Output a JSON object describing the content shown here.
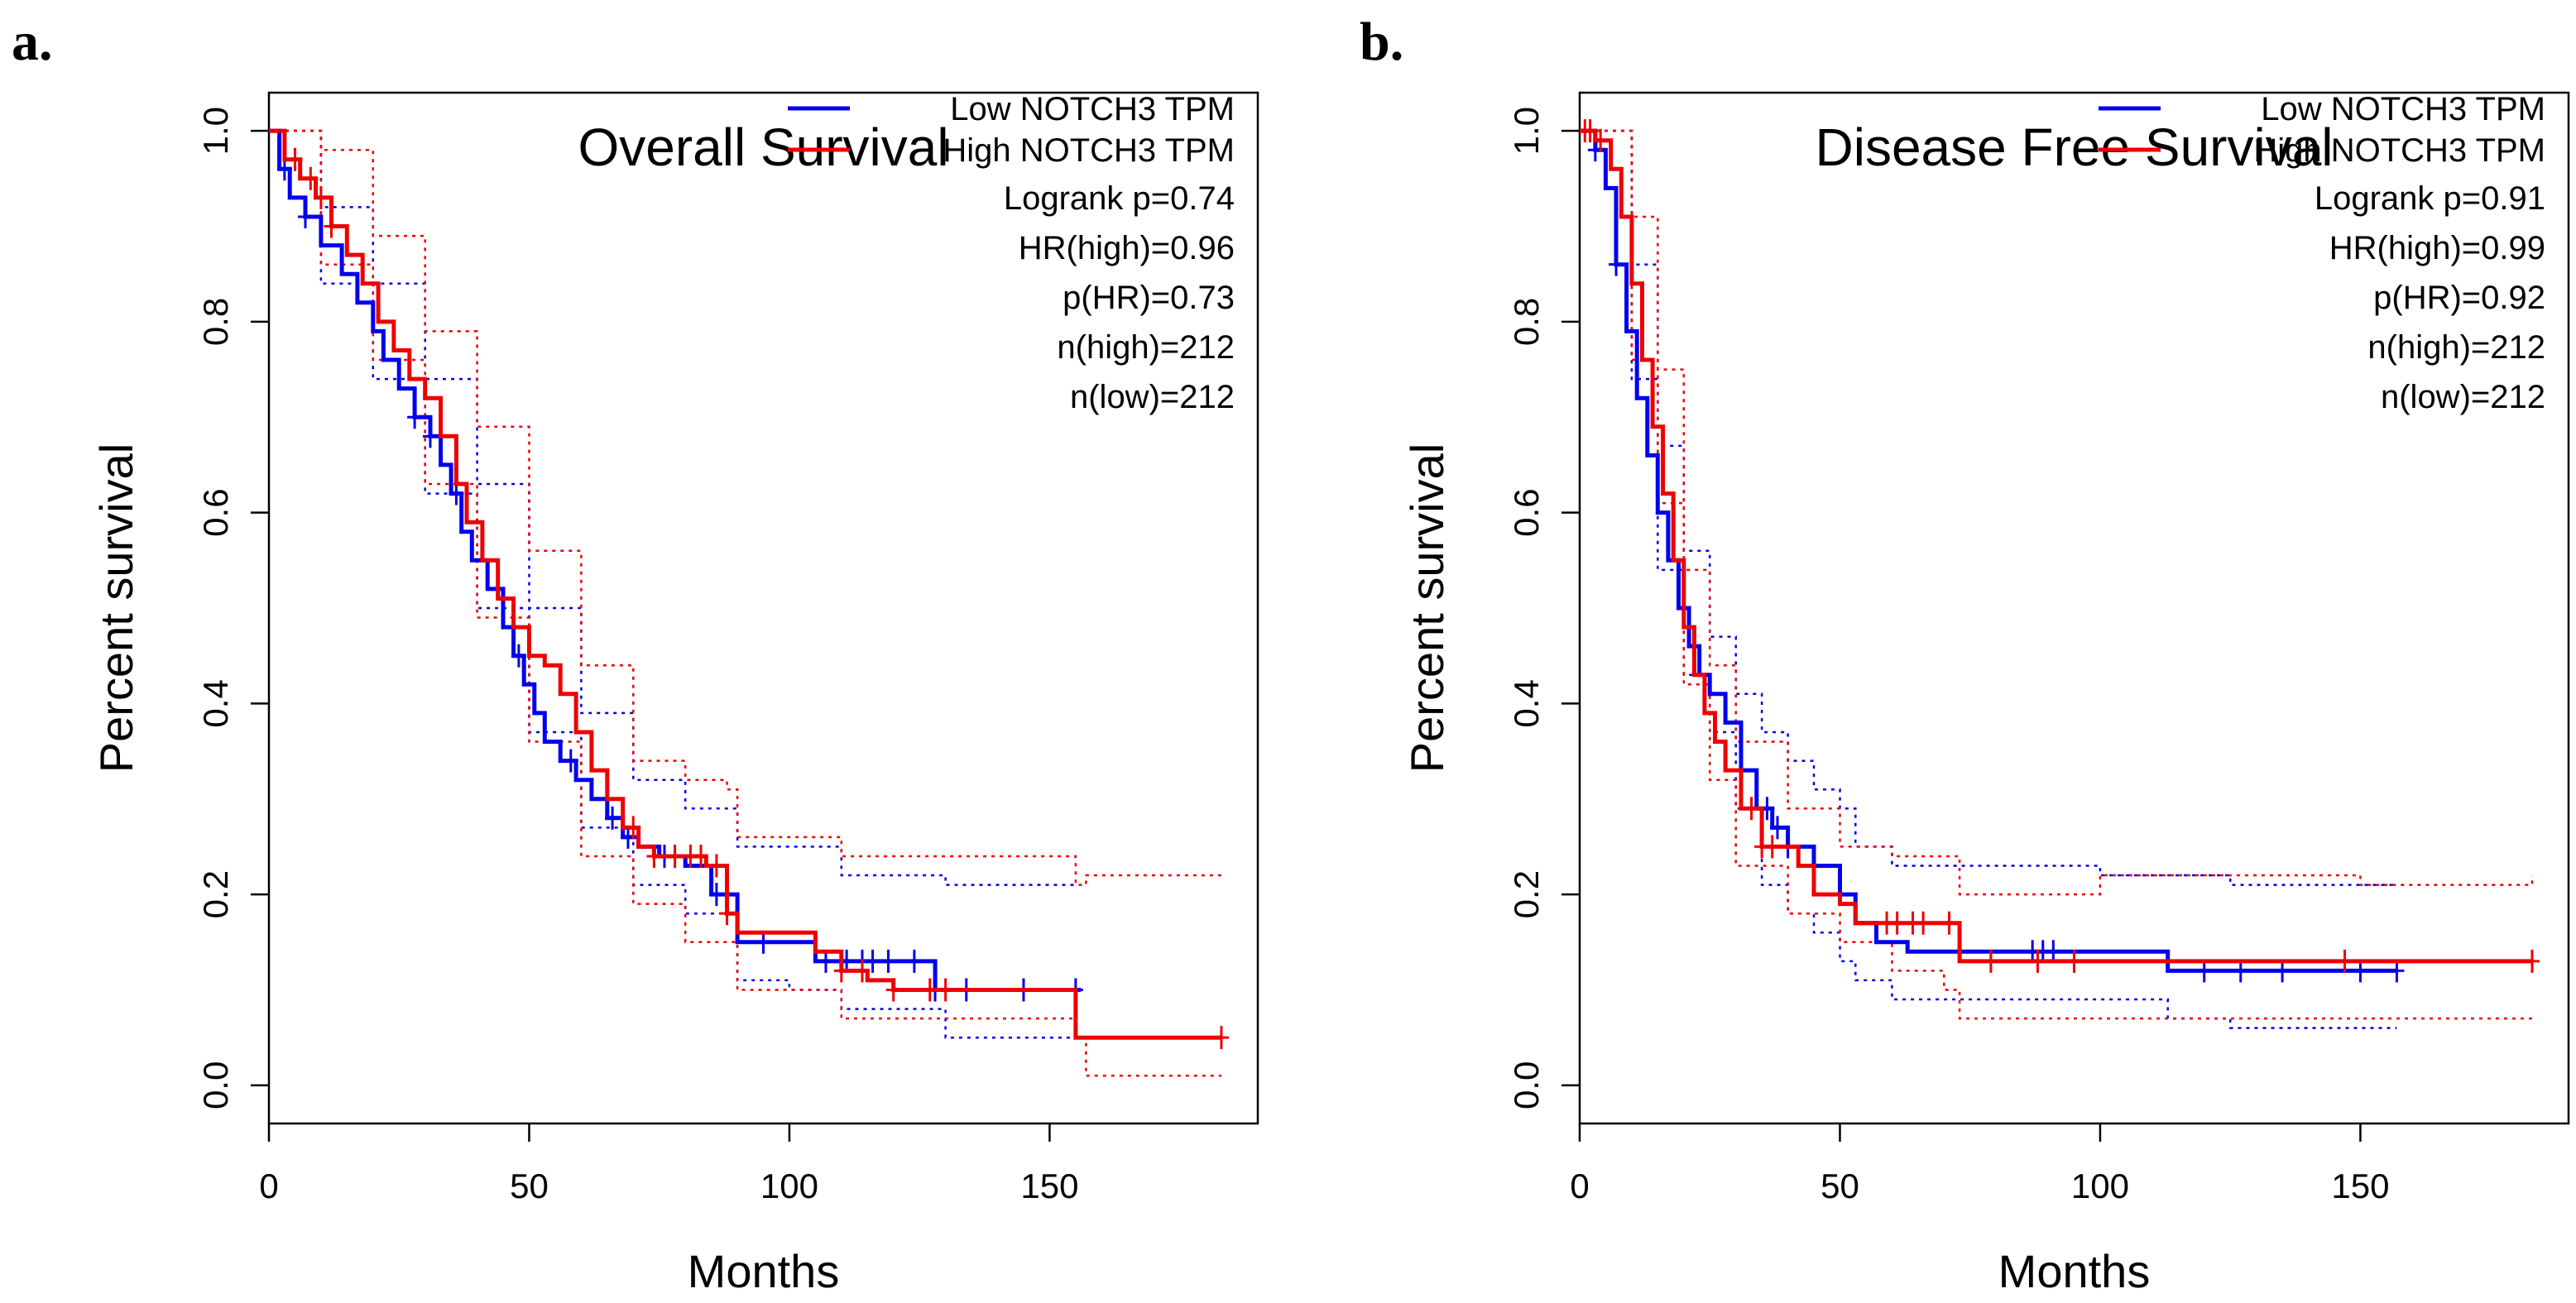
{
  "figure": {
    "panel_a_label": "a.",
    "panel_b_label": "b."
  },
  "colors": {
    "low": "#0000ee",
    "high": "#ee0000",
    "axis": "#000000"
  },
  "chart_data": [
    {
      "type": "line",
      "panel": "a.",
      "title": "Overall Survival",
      "xlabel": "Months",
      "ylabel": "Percent survival",
      "xlim": [
        0,
        190
      ],
      "ylim": [
        -0.04,
        1.04
      ],
      "xticks": [
        0,
        50,
        100,
        150
      ],
      "xtick_labels": [
        "0",
        "50",
        "100",
        "150"
      ],
      "yticks": [
        0,
        0.2,
        0.4,
        0.6,
        0.8,
        1
      ],
      "ytick_labels": [
        "0.0",
        "0.2",
        "0.4",
        "0.6",
        "0.8",
        "1.0"
      ],
      "legend_position": "top-right",
      "legend": [
        "Low NOTCH3 TPM",
        "High NOTCH3 TPM"
      ],
      "stats": [
        "Logrank p=0.74",
        "HR(high)=0.96",
        "p(HR)=0.73",
        "n(high)=212",
        "n(low)=212"
      ],
      "series": [
        {
          "name": "Low NOTCH3 TPM",
          "color": "#0000ee",
          "x": [
            0,
            2,
            4,
            7,
            10,
            14,
            17,
            20,
            22,
            25,
            28,
            31,
            33,
            35,
            37,
            39,
            42,
            45,
            47,
            49,
            51,
            53,
            56,
            59,
            62,
            65,
            68,
            71,
            75,
            80,
            85,
            90,
            93,
            100,
            105,
            110,
            115,
            120,
            128,
            135,
            145,
            156
          ],
          "y": [
            1.0,
            0.96,
            0.93,
            0.91,
            0.88,
            0.85,
            0.82,
            0.79,
            0.76,
            0.73,
            0.7,
            0.68,
            0.65,
            0.62,
            0.58,
            0.55,
            0.52,
            0.48,
            0.45,
            0.42,
            0.39,
            0.36,
            0.34,
            0.32,
            0.3,
            0.28,
            0.26,
            0.25,
            0.24,
            0.23,
            0.2,
            0.15,
            0.15,
            0.15,
            0.13,
            0.13,
            0.13,
            0.13,
            0.1,
            0.1,
            0.1,
            0.1
          ],
          "censor_x": [
            3,
            7,
            28,
            31,
            36,
            48,
            58,
            66,
            69,
            76,
            86,
            95,
            107,
            111,
            114,
            116,
            119,
            124,
            128,
            134,
            145,
            155
          ]
        },
        {
          "name": "High NOTCH3 TPM",
          "color": "#ee0000",
          "x": [
            0,
            3,
            6,
            9,
            12,
            15,
            18,
            21,
            24,
            27,
            30,
            33,
            36,
            38,
            41,
            44,
            47,
            50,
            53,
            56,
            59,
            62,
            65,
            68,
            71,
            74,
            78,
            84,
            88,
            90,
            95,
            100,
            105,
            110,
            115,
            120,
            130,
            140,
            150,
            155,
            170,
            183
          ],
          "y": [
            1.0,
            0.97,
            0.95,
            0.93,
            0.9,
            0.87,
            0.84,
            0.8,
            0.77,
            0.74,
            0.72,
            0.68,
            0.63,
            0.59,
            0.55,
            0.51,
            0.48,
            0.45,
            0.44,
            0.41,
            0.37,
            0.33,
            0.3,
            0.27,
            0.25,
            0.24,
            0.24,
            0.23,
            0.18,
            0.16,
            0.16,
            0.16,
            0.14,
            0.12,
            0.11,
            0.1,
            0.1,
            0.1,
            0.1,
            0.05,
            0.05,
            0.05
          ],
          "censor_x": [
            5,
            8,
            10,
            12,
            70,
            74,
            78,
            81,
            83,
            86,
            88,
            110,
            114,
            120,
            127,
            130,
            183
          ]
        }
      ],
      "ci_bands": [
        {
          "series": "Low NOTCH3 TPM",
          "upper": [
            [
              0,
              1.0
            ],
            [
              10,
              0.92
            ],
            [
              20,
              0.84
            ],
            [
              30,
              0.74
            ],
            [
              40,
              0.63
            ],
            [
              50,
              0.5
            ],
            [
              60,
              0.39
            ],
            [
              70,
              0.32
            ],
            [
              80,
              0.29
            ],
            [
              90,
              0.25
            ],
            [
              100,
              0.25
            ],
            [
              110,
              0.22
            ],
            [
              130,
              0.21
            ],
            [
              155,
              0.21
            ]
          ],
          "lower": [
            [
              0,
              1.0
            ],
            [
              10,
              0.84
            ],
            [
              20,
              0.74
            ],
            [
              30,
              0.62
            ],
            [
              40,
              0.5
            ],
            [
              50,
              0.37
            ],
            [
              60,
              0.27
            ],
            [
              70,
              0.21
            ],
            [
              80,
              0.18
            ],
            [
              90,
              0.11
            ],
            [
              100,
              0.1
            ],
            [
              110,
              0.08
            ],
            [
              130,
              0.05
            ],
            [
              155,
              0.05
            ]
          ]
        },
        {
          "series": "High NOTCH3 TPM",
          "upper": [
            [
              0,
              1.0
            ],
            [
              10,
              0.98
            ],
            [
              20,
              0.89
            ],
            [
              30,
              0.79
            ],
            [
              40,
              0.69
            ],
            [
              50,
              0.56
            ],
            [
              60,
              0.44
            ],
            [
              70,
              0.34
            ],
            [
              80,
              0.32
            ],
            [
              88,
              0.31
            ],
            [
              90,
              0.26
            ],
            [
              110,
              0.24
            ],
            [
              155,
              0.21
            ],
            [
              157,
              0.22
            ],
            [
              183,
              0.22
            ]
          ],
          "lower": [
            [
              0,
              1.0
            ],
            [
              10,
              0.86
            ],
            [
              20,
              0.76
            ],
            [
              30,
              0.63
            ],
            [
              40,
              0.49
            ],
            [
              50,
              0.36
            ],
            [
              60,
              0.24
            ],
            [
              70,
              0.19
            ],
            [
              80,
              0.15
            ],
            [
              90,
              0.1
            ],
            [
              110,
              0.07
            ],
            [
              155,
              0.05
            ],
            [
              157,
              0.01
            ],
            [
              183,
              0.01
            ]
          ]
        }
      ]
    },
    {
      "type": "line",
      "panel": "b.",
      "title": "Disease Free Survival",
      "xlabel": "Months",
      "ylabel": "Percent survival",
      "xlim": [
        0,
        190
      ],
      "ylim": [
        -0.04,
        1.04
      ],
      "xticks": [
        0,
        50,
        100,
        150
      ],
      "xtick_labels": [
        "0",
        "50",
        "100",
        "150"
      ],
      "yticks": [
        0,
        0.2,
        0.4,
        0.6,
        0.8,
        1
      ],
      "ytick_labels": [
        "0.0",
        "0.2",
        "0.4",
        "0.6",
        "0.8",
        "1.0"
      ],
      "legend_position": "top-right",
      "legend": [
        "Low NOTCH3 TPM",
        "High NOTCH3 TPM"
      ],
      "stats": [
        "Logrank p=0.91",
        "HR(high)=0.99",
        "p(HR)=0.92",
        "n(high)=212",
        "n(low)=212"
      ],
      "series": [
        {
          "name": "Low NOTCH3 TPM",
          "color": "#0000ee",
          "x": [
            0,
            3,
            5,
            7,
            9,
            11,
            13,
            15,
            17,
            19,
            21,
            23,
            25,
            28,
            31,
            34,
            37,
            40,
            45,
            50,
            53,
            57,
            63,
            73,
            88,
            100,
            113,
            125,
            140,
            157
          ],
          "y": [
            1.0,
            0.98,
            0.94,
            0.86,
            0.79,
            0.72,
            0.66,
            0.6,
            0.55,
            0.5,
            0.46,
            0.43,
            0.41,
            0.38,
            0.33,
            0.29,
            0.27,
            0.25,
            0.23,
            0.2,
            0.17,
            0.15,
            0.14,
            0.14,
            0.14,
            0.14,
            0.12,
            0.12,
            0.12,
            0.12
          ],
          "censor_x": [
            3,
            7,
            36,
            38,
            40,
            45,
            50,
            87,
            89,
            91,
            120,
            127,
            135,
            150,
            157
          ]
        },
        {
          "name": "High NOTCH3 TPM",
          "color": "#ee0000",
          "x": [
            0,
            3,
            6,
            8,
            10,
            12,
            14,
            16,
            18,
            20,
            22,
            24,
            26,
            28,
            31,
            35,
            38,
            42,
            45,
            50,
            53,
            58,
            63,
            68,
            73,
            80,
            90,
            120,
            150,
            183
          ],
          "y": [
            1.0,
            0.99,
            0.96,
            0.91,
            0.84,
            0.76,
            0.69,
            0.62,
            0.55,
            0.48,
            0.43,
            0.39,
            0.36,
            0.33,
            0.29,
            0.25,
            0.25,
            0.23,
            0.2,
            0.19,
            0.17,
            0.17,
            0.17,
            0.17,
            0.13,
            0.13,
            0.13,
            0.13,
            0.13,
            0.13
          ],
          "censor_x": [
            1,
            2,
            4,
            33,
            35,
            37,
            59,
            61,
            64,
            66,
            71,
            79,
            88,
            95,
            147,
            183
          ]
        }
      ],
      "ci_bands": [
        {
          "series": "Low NOTCH3 TPM",
          "upper": [
            [
              0,
              1.0
            ],
            [
              10,
              0.86
            ],
            [
              15,
              0.67
            ],
            [
              20,
              0.56
            ],
            [
              25,
              0.47
            ],
            [
              30,
              0.41
            ],
            [
              35,
              0.37
            ],
            [
              40,
              0.34
            ],
            [
              45,
              0.31
            ],
            [
              50,
              0.29
            ],
            [
              53,
              0.25
            ],
            [
              60,
              0.23
            ],
            [
              75,
              0.23
            ],
            [
              100,
              0.22
            ],
            [
              113,
              0.22
            ],
            [
              125,
              0.21
            ],
            [
              157,
              0.21
            ]
          ],
          "lower": [
            [
              0,
              1.0
            ],
            [
              10,
              0.74
            ],
            [
              15,
              0.54
            ],
            [
              20,
              0.43
            ],
            [
              25,
              0.37
            ],
            [
              30,
              0.29
            ],
            [
              35,
              0.21
            ],
            [
              40,
              0.18
            ],
            [
              45,
              0.16
            ],
            [
              50,
              0.13
            ],
            [
              53,
              0.11
            ],
            [
              60,
              0.09
            ],
            [
              75,
              0.09
            ],
            [
              100,
              0.09
            ],
            [
              113,
              0.07
            ],
            [
              125,
              0.06
            ],
            [
              157,
              0.06
            ]
          ]
        },
        {
          "series": "High NOTCH3 TPM",
          "upper": [
            [
              0,
              1.0
            ],
            [
              10,
              0.91
            ],
            [
              15,
              0.75
            ],
            [
              20,
              0.54
            ],
            [
              25,
              0.44
            ],
            [
              30,
              0.36
            ],
            [
              40,
              0.29
            ],
            [
              50,
              0.25
            ],
            [
              60,
              0.24
            ],
            [
              70,
              0.24
            ],
            [
              73,
              0.2
            ],
            [
              100,
              0.22
            ],
            [
              150,
              0.21
            ],
            [
              183,
              0.22
            ]
          ],
          "lower": [
            [
              0,
              1.0
            ],
            [
              10,
              0.76
            ],
            [
              15,
              0.61
            ],
            [
              20,
              0.42
            ],
            [
              25,
              0.32
            ],
            [
              30,
              0.23
            ],
            [
              40,
              0.18
            ],
            [
              50,
              0.15
            ],
            [
              60,
              0.12
            ],
            [
              70,
              0.1
            ],
            [
              73,
              0.07
            ],
            [
              100,
              0.07
            ],
            [
              150,
              0.07
            ],
            [
              183,
              0.07
            ]
          ]
        }
      ]
    }
  ]
}
